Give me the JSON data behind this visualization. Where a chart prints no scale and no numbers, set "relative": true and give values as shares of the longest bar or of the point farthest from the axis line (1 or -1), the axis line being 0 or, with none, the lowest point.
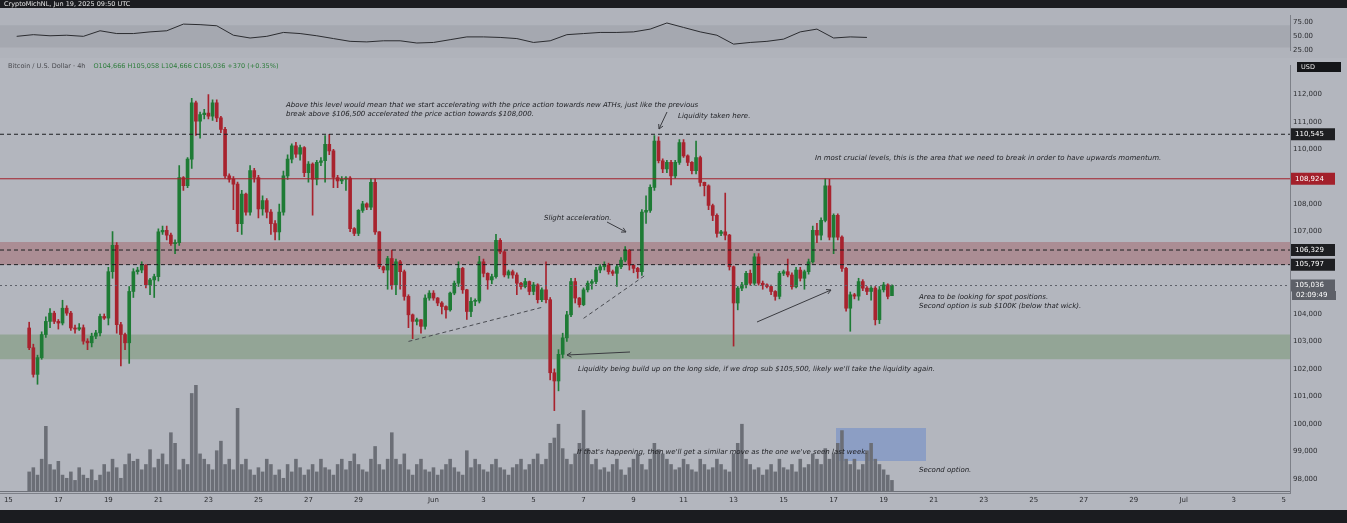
{
  "chart_data": [
    {
      "type": "line",
      "title": "CryptoMichNL, Jun 19, 2025 09:50 UTC",
      "x": [
        "2025-05-15T08:00",
        "2025-05-16T00:00",
        "2025-05-16T16:00",
        "2025-05-17T08:00",
        "2025-05-18T00:00",
        "2025-05-18T16:00",
        "2025-05-19T08:00",
        "2025-05-20T00:00",
        "2025-05-20T16:00",
        "2025-05-21T08:00",
        "2025-05-22T00:00",
        "2025-05-22T16:00",
        "2025-05-23T08:00",
        "2025-05-24T00:00",
        "2025-05-24T16:00",
        "2025-05-25T08:00",
        "2025-05-26T00:00",
        "2025-05-26T16:00",
        "2025-05-27T08:00",
        "2025-05-28T00:00",
        "2025-05-28T16:00",
        "2025-05-29T08:00",
        "2025-05-30T00:00",
        "2025-05-30T16:00",
        "2025-05-31T08:00",
        "2025-06-01T00:00",
        "2025-06-01T16:00",
        "2025-06-02T08:00",
        "2025-06-03T00:00",
        "2025-06-03T16:00",
        "2025-06-04T08:00",
        "2025-06-05T00:00",
        "2025-06-05T16:00",
        "2025-06-06T08:00",
        "2025-06-07T00:00",
        "2025-06-07T16:00",
        "2025-06-08T08:00",
        "2025-06-09T00:00",
        "2025-06-09T16:00",
        "2025-06-10T08:00",
        "2025-06-11T00:00",
        "2025-06-11T16:00",
        "2025-06-12T08:00",
        "2025-06-13T00:00",
        "2025-06-13T16:00",
        "2025-06-14T08:00",
        "2025-06-15T00:00",
        "2025-06-15T16:00",
        "2025-06-16T08:00",
        "2025-06-17T00:00",
        "2025-06-17T16:00",
        "2025-06-18T08:00"
      ],
      "xlim": [
        "2025-05-14T16:00",
        "2025-07-05T06:00"
      ],
      "series": [
        {
          "color": "#2b2c30",
          "values": [
            50,
            53,
            51,
            52,
            50,
            60,
            55,
            55,
            58,
            60,
            72,
            71,
            69,
            52,
            47,
            50,
            57,
            55,
            51,
            46,
            41,
            40,
            42,
            42,
            38,
            39,
            44,
            49,
            49,
            48,
            46,
            39,
            42,
            53,
            55,
            57,
            57,
            58,
            63,
            74,
            66,
            58,
            52,
            36,
            39,
            41,
            45,
            58,
            63,
            47,
            49,
            48
          ]
        }
      ],
      "ylim": [
        24,
        88
      ],
      "yticks": [
        {
          "value": 25,
          "label": "25.00"
        },
        {
          "value": 50,
          "label": "50.00"
        },
        {
          "value": 75,
          "label": "75.00"
        }
      ],
      "bands": [
        {
          "axis": "y",
          "from": 30,
          "to": 70,
          "color": "#a5a8b0"
        }
      ],
      "marker": "none",
      "tick_labels": "y"
    },
    {
      "type": "candlestick",
      "title": "Bitcoin / U.S. Dollar · 4h",
      "subtitle": "O104,666 H105,058 L104,666 C105,036 +370 (+0.35%)",
      "ylabel": "USD",
      "x": [
        "2025-05-15T20:00",
        "2025-05-16T00:00",
        "2025-05-16T04:00",
        "2025-05-16T08:00",
        "2025-05-16T12:00",
        "2025-05-16T16:00",
        "2025-05-16T20:00",
        "2025-05-17T00:00",
        "2025-05-17T04:00",
        "2025-05-17T08:00",
        "2025-05-17T12:00",
        "2025-05-17T16:00",
        "2025-05-17T20:00",
        "2025-05-18T00:00",
        "2025-05-18T04:00",
        "2025-05-18T08:00",
        "2025-05-18T12:00",
        "2025-05-18T16:00",
        "2025-05-18T20:00",
        "2025-05-19T00:00",
        "2025-05-19T04:00",
        "2025-05-19T08:00",
        "2025-05-19T12:00",
        "2025-05-19T16:00",
        "2025-05-19T20:00",
        "2025-05-20T00:00",
        "2025-05-20T04:00",
        "2025-05-20T08:00",
        "2025-05-20T12:00",
        "2025-05-20T16:00",
        "2025-05-20T20:00",
        "2025-05-21T00:00",
        "2025-05-21T04:00",
        "2025-05-21T08:00",
        "2025-05-21T12:00",
        "2025-05-21T16:00",
        "2025-05-21T20:00",
        "2025-05-22T00:00",
        "2025-05-22T04:00",
        "2025-05-22T08:00",
        "2025-05-22T12:00",
        "2025-05-22T16:00",
        "2025-05-22T20:00",
        "2025-05-23T00:00",
        "2025-05-23T04:00",
        "2025-05-23T08:00",
        "2025-05-23T12:00",
        "2025-05-23T16:00",
        "2025-05-23T20:00",
        "2025-05-24T00:00",
        "2025-05-24T04:00",
        "2025-05-24T08:00",
        "2025-05-24T12:00",
        "2025-05-24T16:00",
        "2025-05-24T20:00",
        "2025-05-25T00:00",
        "2025-05-25T04:00",
        "2025-05-25T08:00",
        "2025-05-25T12:00",
        "2025-05-25T16:00",
        "2025-05-25T20:00",
        "2025-05-26T00:00",
        "2025-05-26T04:00",
        "2025-05-26T08:00",
        "2025-05-26T12:00",
        "2025-05-26T16:00",
        "2025-05-26T20:00",
        "2025-05-27T00:00",
        "2025-05-27T04:00",
        "2025-05-27T08:00",
        "2025-05-27T12:00",
        "2025-05-27T16:00",
        "2025-05-27T20:00",
        "2025-05-28T00:00",
        "2025-05-28T04:00",
        "2025-05-28T08:00",
        "2025-05-28T12:00",
        "2025-05-28T16:00",
        "2025-05-28T20:00",
        "2025-05-29T00:00",
        "2025-05-29T04:00",
        "2025-05-29T08:00",
        "2025-05-29T12:00",
        "2025-05-29T16:00",
        "2025-05-29T20:00",
        "2025-05-30T00:00",
        "2025-05-30T04:00",
        "2025-05-30T08:00",
        "2025-05-30T12:00",
        "2025-05-30T16:00",
        "2025-05-30T20:00",
        "2025-05-31T00:00",
        "2025-05-31T04:00",
        "2025-05-31T08:00",
        "2025-05-31T12:00",
        "2025-05-31T16:00",
        "2025-05-31T20:00",
        "2025-06-01T00:00",
        "2025-06-01T04:00",
        "2025-06-01T08:00",
        "2025-06-01T12:00",
        "2025-06-01T16:00",
        "2025-06-01T20:00",
        "2025-06-02T00:00",
        "2025-06-02T04:00",
        "2025-06-02T08:00",
        "2025-06-02T12:00",
        "2025-06-02T16:00",
        "2025-06-02T20:00",
        "2025-06-03T00:00",
        "2025-06-03T04:00",
        "2025-06-03T08:00",
        "2025-06-03T12:00",
        "2025-06-03T16:00",
        "2025-06-03T20:00",
        "2025-06-04T00:00",
        "2025-06-04T04:00",
        "2025-06-04T08:00",
        "2025-06-04T12:00",
        "2025-06-04T16:00",
        "2025-06-04T20:00",
        "2025-06-05T00:00",
        "2025-06-05T04:00",
        "2025-06-05T08:00",
        "2025-06-05T12:00",
        "2025-06-05T16:00",
        "2025-06-05T20:00",
        "2025-06-06T00:00",
        "2025-06-06T04:00",
        "2025-06-06T08:00",
        "2025-06-06T12:00",
        "2025-06-06T16:00",
        "2025-06-06T20:00",
        "2025-06-07T00:00",
        "2025-06-07T04:00",
        "2025-06-07T08:00",
        "2025-06-07T12:00",
        "2025-06-07T16:00",
        "2025-06-07T20:00",
        "2025-06-08T00:00",
        "2025-06-08T04:00",
        "2025-06-08T08:00",
        "2025-06-08T12:00",
        "2025-06-08T16:00",
        "2025-06-08T20:00",
        "2025-06-09T00:00",
        "2025-06-09T04:00",
        "2025-06-09T08:00",
        "2025-06-09T12:00",
        "2025-06-09T16:00",
        "2025-06-09T20:00",
        "2025-06-10T00:00",
        "2025-06-10T04:00",
        "2025-06-10T08:00",
        "2025-06-10T12:00",
        "2025-06-10T16:00",
        "2025-06-10T20:00",
        "2025-06-11T00:00",
        "2025-06-11T04:00",
        "2025-06-11T08:00",
        "2025-06-11T12:00",
        "2025-06-11T16:00",
        "2025-06-11T20:00",
        "2025-06-12T00:00",
        "2025-06-12T04:00",
        "2025-06-12T08:00",
        "2025-06-12T12:00",
        "2025-06-12T16:00",
        "2025-06-12T20:00",
        "2025-06-13T00:00",
        "2025-06-13T04:00",
        "2025-06-13T08:00",
        "2025-06-13T12:00",
        "2025-06-13T16:00",
        "2025-06-13T20:00",
        "2025-06-14T00:00",
        "2025-06-14T04:00",
        "2025-06-14T08:00",
        "2025-06-14T12:00",
        "2025-06-14T16:00",
        "2025-06-14T20:00",
        "2025-06-15T00:00",
        "2025-06-15T04:00",
        "2025-06-15T08:00",
        "2025-06-15T12:00",
        "2025-06-15T16:00",
        "2025-06-15T20:00",
        "2025-06-16T00:00",
        "2025-06-16T04:00",
        "2025-06-16T08:00",
        "2025-06-16T12:00",
        "2025-06-16T16:00",
        "2025-06-16T20:00",
        "2025-06-17T00:00",
        "2025-06-17T04:00",
        "2025-06-17T08:00",
        "2025-06-17T12:00",
        "2025-06-17T16:00",
        "2025-06-17T20:00",
        "2025-06-18T00:00",
        "2025-06-18T04:00",
        "2025-06-18T08:00",
        "2025-06-18T12:00",
        "2025-06-18T16:00",
        "2025-06-18T20:00",
        "2025-06-19T00:00",
        "2025-06-19T04:00",
        "2025-06-19T08:00"
      ],
      "ohlc": [
        [
          103490,
          103700,
          102700,
          102770
        ],
        [
          102770,
          102900,
          101700,
          101800
        ],
        [
          101800,
          102500,
          101440,
          102410
        ],
        [
          102410,
          103350,
          102350,
          103250
        ],
        [
          103250,
          103900,
          103150,
          103730
        ],
        [
          103730,
          104200,
          103500,
          104030
        ],
        [
          104030,
          104100,
          103650,
          103730
        ],
        [
          103730,
          103800,
          103450,
          103670
        ],
        [
          103670,
          104500,
          103600,
          104210
        ],
        [
          104210,
          104300,
          103950,
          104030
        ],
        [
          104030,
          104100,
          103400,
          103490
        ],
        [
          103490,
          103600,
          103300,
          103450
        ],
        [
          103450,
          103650,
          103400,
          103500
        ],
        [
          103500,
          103600,
          102900,
          103010
        ],
        [
          103010,
          103100,
          102700,
          102950
        ],
        [
          102950,
          103300,
          102800,
          103190
        ],
        [
          103190,
          103400,
          103100,
          103310
        ],
        [
          103310,
          104000,
          103200,
          103910
        ],
        [
          103910,
          104000,
          103800,
          103850
        ],
        [
          103850,
          105700,
          103600,
          105540
        ],
        [
          105540,
          107000,
          105300,
          106500
        ],
        [
          106500,
          106600,
          103300,
          103610
        ],
        [
          103610,
          103700,
          102110,
          103250
        ],
        [
          103250,
          103300,
          102700,
          102950
        ],
        [
          102950,
          105000,
          102200,
          104820
        ],
        [
          104820,
          105650,
          104600,
          105540
        ],
        [
          105540,
          105700,
          105450,
          105600
        ],
        [
          105600,
          105900,
          105500,
          105780
        ],
        [
          105780,
          105800,
          104950,
          105060
        ],
        [
          105060,
          105300,
          104700,
          105240
        ],
        [
          105240,
          105450,
          104600,
          105360
        ],
        [
          105360,
          107100,
          105200,
          106990
        ],
        [
          106990,
          107200,
          106900,
          107050
        ],
        [
          107050,
          107200,
          106700,
          106870
        ],
        [
          106870,
          106950,
          106500,
          106560
        ],
        [
          106560,
          106700,
          106200,
          106600
        ],
        [
          106600,
          109400,
          106500,
          108970
        ],
        [
          108970,
          109000,
          108500,
          108670
        ],
        [
          108670,
          109700,
          108600,
          109640
        ],
        [
          109640,
          111850,
          109300,
          111690
        ],
        [
          111690,
          111750,
          110500,
          111020
        ],
        [
          111020,
          111350,
          110400,
          111260
        ],
        [
          111260,
          111450,
          111100,
          111320
        ],
        [
          111320,
          111990,
          111100,
          111200
        ],
        [
          111200,
          111800,
          111050,
          111690
        ],
        [
          111690,
          111800,
          111000,
          111140
        ],
        [
          111140,
          111200,
          110600,
          110720
        ],
        [
          110720,
          110800,
          108950,
          109030
        ],
        [
          109030,
          109100,
          108800,
          108910
        ],
        [
          108910,
          109000,
          107800,
          108730
        ],
        [
          108730,
          108800,
          107000,
          107290
        ],
        [
          107290,
          108500,
          106900,
          108370
        ],
        [
          108370,
          108400,
          107600,
          107710
        ],
        [
          107710,
          109400,
          107600,
          109220
        ],
        [
          109220,
          109300,
          108800,
          108970
        ],
        [
          108970,
          109050,
          107500,
          107830
        ],
        [
          107830,
          108300,
          107600,
          108130
        ],
        [
          108130,
          108200,
          107500,
          107710
        ],
        [
          107710,
          107800,
          106900,
          107290
        ],
        [
          107290,
          107400,
          106700,
          106990
        ],
        [
          106990,
          108000,
          106700,
          107710
        ],
        [
          107710,
          109200,
          107600,
          109030
        ],
        [
          109030,
          109800,
          108900,
          109640
        ],
        [
          109640,
          110200,
          109500,
          110120
        ],
        [
          110120,
          110250,
          109700,
          109820
        ],
        [
          109820,
          110150,
          109600,
          110060
        ],
        [
          110060,
          110100,
          109000,
          109150
        ],
        [
          109150,
          109550,
          108800,
          109460
        ],
        [
          109460,
          109500,
          107600,
          108910
        ],
        [
          108910,
          109600,
          108700,
          109520
        ],
        [
          109520,
          109700,
          109400,
          109580
        ],
        [
          109580,
          110500,
          108800,
          110180
        ],
        [
          110180,
          110545,
          109800,
          109940
        ],
        [
          109940,
          110000,
          108600,
          108970
        ],
        [
          108970,
          109050,
          108600,
          108850
        ],
        [
          108850,
          109000,
          108750,
          108910
        ],
        [
          108910,
          109000,
          108500,
          108950
        ],
        [
          108950,
          109000,
          107000,
          107110
        ],
        [
          107110,
          107150,
          106850,
          106930
        ],
        [
          106930,
          107800,
          106850,
          107770
        ],
        [
          107770,
          108100,
          107700,
          108010
        ],
        [
          108010,
          108050,
          107800,
          107890
        ],
        [
          107890,
          108930,
          107800,
          108790
        ],
        [
          108790,
          108924,
          106900,
          106990
        ],
        [
          106990,
          107000,
          105650,
          105720
        ],
        [
          105720,
          105750,
          105500,
          105600
        ],
        [
          105600,
          106100,
          104900,
          106020
        ],
        [
          106020,
          106329,
          104900,
          105060
        ],
        [
          105060,
          106000,
          104700,
          105900
        ],
        [
          105900,
          105950,
          104900,
          105540
        ],
        [
          105540,
          105600,
          104500,
          104640
        ],
        [
          104640,
          104700,
          103500,
          103970
        ],
        [
          103970,
          104000,
          103100,
          103730
        ],
        [
          103730,
          103850,
          103600,
          103790
        ],
        [
          103790,
          103800,
          103300,
          103550
        ],
        [
          103550,
          104700,
          103450,
          104580
        ],
        [
          104580,
          104850,
          104500,
          104760
        ],
        [
          104760,
          104850,
          104500,
          104580
        ],
        [
          104580,
          104600,
          104300,
          104400
        ],
        [
          104400,
          104450,
          104000,
          104270
        ],
        [
          104270,
          104300,
          103850,
          104150
        ],
        [
          104150,
          104800,
          104100,
          104760
        ],
        [
          104760,
          105200,
          104700,
          105120
        ],
        [
          105120,
          105900,
          105000,
          105660
        ],
        [
          105660,
          105700,
          104750,
          104880
        ],
        [
          104880,
          104900,
          103800,
          104090
        ],
        [
          104090,
          104600,
          103900,
          104460
        ],
        [
          104460,
          104550,
          104300,
          104470
        ],
        [
          104470,
          106100,
          104400,
          105900
        ],
        [
          105900,
          106000,
          105350,
          105480
        ],
        [
          105480,
          105500,
          104900,
          105240
        ],
        [
          105240,
          105450,
          105100,
          105360
        ],
        [
          105360,
          106900,
          105300,
          106680
        ],
        [
          106680,
          106750,
          106200,
          106260
        ],
        [
          106260,
          106300,
          105350,
          105420
        ],
        [
          105420,
          105600,
          105300,
          105540
        ],
        [
          105540,
          105600,
          105300,
          105420
        ],
        [
          105420,
          105500,
          104700,
          105120
        ],
        [
          105120,
          105150,
          104900,
          105000
        ],
        [
          105000,
          105300,
          104950,
          105180
        ],
        [
          105180,
          105200,
          104700,
          104820
        ],
        [
          104820,
          105150,
          104700,
          105060
        ],
        [
          105060,
          105100,
          104400,
          104520
        ],
        [
          104520,
          104950,
          104450,
          104880
        ],
        [
          104880,
          105900,
          104400,
          104520
        ],
        [
          104520,
          104600,
          101600,
          101860
        ],
        [
          101860,
          102000,
          100480,
          101560
        ],
        [
          101560,
          102700,
          101200,
          102530
        ],
        [
          102530,
          103300,
          102400,
          103130
        ],
        [
          103130,
          104100,
          103000,
          103970
        ],
        [
          103970,
          105300,
          103900,
          105180
        ],
        [
          105180,
          105300,
          104400,
          104580
        ],
        [
          104580,
          104600,
          104250,
          104340
        ],
        [
          104340,
          104950,
          104300,
          104880
        ],
        [
          104880,
          105200,
          104800,
          105120
        ],
        [
          105120,
          105250,
          104900,
          105180
        ],
        [
          105180,
          105700,
          105100,
          105600
        ],
        [
          105600,
          105800,
          105500,
          105720
        ],
        [
          105720,
          105900,
          105600,
          105780
        ],
        [
          105780,
          105850,
          105450,
          105540
        ],
        [
          105540,
          105600,
          105400,
          105480
        ],
        [
          105480,
          105800,
          105000,
          105720
        ],
        [
          105720,
          106050,
          105650,
          105960
        ],
        [
          105960,
          106450,
          105900,
          106320
        ],
        [
          106320,
          106350,
          105600,
          105780
        ],
        [
          105780,
          105800,
          105500,
          105660
        ],
        [
          105660,
          105700,
          105300,
          105540
        ],
        [
          105540,
          107800,
          105400,
          107710
        ],
        [
          107710,
          108300,
          107300,
          107770
        ],
        [
          107770,
          108700,
          107700,
          108610
        ],
        [
          108610,
          110500,
          108500,
          110300
        ],
        [
          110300,
          110450,
          109500,
          109580
        ],
        [
          109580,
          109650,
          109150,
          109280
        ],
        [
          109280,
          109600,
          109150,
          109520
        ],
        [
          109520,
          109600,
          108700,
          109030
        ],
        [
          109030,
          109600,
          108950,
          109520
        ],
        [
          109520,
          110350,
          109450,
          110240
        ],
        [
          110240,
          110350,
          109700,
          109760
        ],
        [
          109760,
          109800,
          109400,
          109520
        ],
        [
          109520,
          109550,
          109100,
          109220
        ],
        [
          109220,
          110300,
          109100,
          109700
        ],
        [
          109700,
          109750,
          108650,
          108790
        ],
        [
          108790,
          108800,
          108300,
          108670
        ],
        [
          108670,
          108700,
          107800,
          107950
        ],
        [
          107950,
          108000,
          107400,
          107590
        ],
        [
          107590,
          107650,
          106800,
          106930
        ],
        [
          106930,
          107050,
          106850,
          106990
        ],
        [
          106990,
          108400,
          106700,
          106870
        ],
        [
          106870,
          106900,
          105600,
          105720
        ],
        [
          105720,
          105750,
          102830,
          104400
        ],
        [
          104400,
          105000,
          104150,
          104940
        ],
        [
          104940,
          105150,
          104850,
          105060
        ],
        [
          105060,
          105550,
          104950,
          105480
        ],
        [
          105480,
          105600,
          105050,
          105120
        ],
        [
          105120,
          106200,
          105050,
          106080
        ],
        [
          106080,
          106200,
          105050,
          105120
        ],
        [
          105120,
          105200,
          104900,
          105060
        ],
        [
          105060,
          105100,
          104950,
          105000
        ],
        [
          105000,
          105050,
          104700,
          104820
        ],
        [
          104820,
          104850,
          104500,
          104640
        ],
        [
          104640,
          105550,
          104550,
          105480
        ],
        [
          105480,
          105600,
          105400,
          105540
        ],
        [
          105540,
          106000,
          105350,
          105420
        ],
        [
          105420,
          105500,
          104900,
          104990
        ],
        [
          104990,
          105700,
          104950,
          105600
        ],
        [
          105600,
          105700,
          105200,
          105300
        ],
        [
          105300,
          105600,
          104900,
          105540
        ],
        [
          105540,
          106000,
          105450,
          105900
        ],
        [
          105900,
          107200,
          105850,
          107050
        ],
        [
          107050,
          107300,
          106600,
          106870
        ],
        [
          106870,
          107500,
          106700,
          107410
        ],
        [
          107410,
          108920,
          107350,
          108670
        ],
        [
          108670,
          108900,
          106700,
          106800
        ],
        [
          106800,
          107650,
          106200,
          107590
        ],
        [
          107590,
          107650,
          106700,
          106800
        ],
        [
          106800,
          106850,
          105550,
          105660
        ],
        [
          105660,
          105700,
          104100,
          104210
        ],
        [
          104210,
          104800,
          103370,
          104700
        ],
        [
          104700,
          104750,
          104550,
          104650
        ],
        [
          104650,
          105300,
          104500,
          105180
        ],
        [
          105180,
          105250,
          104850,
          104940
        ],
        [
          104940,
          105000,
          104700,
          104820
        ],
        [
          104820,
          105000,
          104500,
          104940
        ],
        [
          104940,
          105000,
          103600,
          103790
        ],
        [
          103790,
          105000,
          103650,
          104880
        ],
        [
          104880,
          105150,
          104800,
          105060
        ],
        [
          105060,
          105100,
          104550,
          104640
        ],
        [
          104666,
          105058,
          104666,
          105036
        ]
      ],
      "series": [
        {
          "type": "line",
          "x": [
            "2025-05-31T00:00",
            "2025-06-05T08:00"
          ],
          "values": [
            103000,
            104240
          ],
          "color": "#4a4c52",
          "line_style": "dashed"
        },
        {
          "type": "line",
          "x": [
            "2025-06-07T00:00",
            "2025-06-09T12:00"
          ],
          "values": [
            103840,
            105430
          ],
          "color": "#4a4c52",
          "line_style": "dashed"
        }
      ],
      "xlim": [
        "2025-05-14T16:00",
        "2025-07-05T06:00"
      ],
      "xticks": [
        {
          "value": "2025-05-15",
          "label": "15"
        },
        {
          "value": "2025-05-17",
          "label": "17"
        },
        {
          "value": "2025-05-19",
          "label": "19"
        },
        {
          "value": "2025-05-21",
          "label": "21"
        },
        {
          "value": "2025-05-23",
          "label": "23"
        },
        {
          "value": "2025-05-25",
          "label": "25"
        },
        {
          "value": "2025-05-27",
          "label": "27"
        },
        {
          "value": "2025-05-29",
          "label": "29"
        },
        {
          "value": "2025-06-01",
          "label": "Jun"
        },
        {
          "value": "2025-06-03",
          "label": "3"
        },
        {
          "value": "2025-06-05",
          "label": "5"
        },
        {
          "value": "2025-06-07",
          "label": "7"
        },
        {
          "value": "2025-06-09",
          "label": "9"
        },
        {
          "value": "2025-06-11",
          "label": "11"
        },
        {
          "value": "2025-06-13",
          "label": "13"
        },
        {
          "value": "2025-06-15",
          "label": "15"
        },
        {
          "value": "2025-06-17",
          "label": "17"
        },
        {
          "value": "2025-06-19",
          "label": "19"
        },
        {
          "value": "2025-06-21",
          "label": "21"
        },
        {
          "value": "2025-06-23",
          "label": "23"
        },
        {
          "value": "2025-06-25",
          "label": "25"
        },
        {
          "value": "2025-06-27",
          "label": "27"
        },
        {
          "value": "2025-06-29",
          "label": "29"
        },
        {
          "value": "2025-07-01",
          "label": "Jul"
        },
        {
          "value": "2025-07-03",
          "label": "3"
        },
        {
          "value": "2025-07-05",
          "label": "5"
        }
      ],
      "ylim": [
        97480,
        113060
      ],
      "yticks": [
        {
          "value": 98000,
          "label": "98,000"
        },
        {
          "value": 99000,
          "label": "99,000"
        },
        {
          "value": 100000,
          "label": "100,000"
        },
        {
          "value": 101000,
          "label": "101,000"
        },
        {
          "value": 102000,
          "label": "102,000"
        },
        {
          "value": 103000,
          "label": "103,000"
        },
        {
          "value": 104000,
          "label": "104,000"
        },
        {
          "value": 107000,
          "label": "107,000"
        },
        {
          "value": 108000,
          "label": "108,000"
        },
        {
          "value": 110000,
          "label": "110,000"
        },
        {
          "value": 111000,
          "label": "111,000"
        },
        {
          "value": 112000,
          "label": "112,000"
        }
      ],
      "ref_lines": [
        {
          "axis": "y",
          "value": 110545,
          "label": "110,545",
          "color": "#1e1f22",
          "line_style": "dashed"
        },
        {
          "axis": "y",
          "value": 108924,
          "label": "108,924",
          "color": "#a3202b",
          "line_style": "solid"
        },
        {
          "axis": "y",
          "value": 106329,
          "label": "106,329",
          "color": "#1e1f22",
          "line_style": "dashed"
        },
        {
          "axis": "y",
          "value": 105797,
          "label": "105,797",
          "color": "#1e1f22",
          "line_style": "dashed"
        },
        {
          "axis": "y",
          "value": 105036,
          "label": "105,036",
          "color": "#5d6068",
          "line_style": "dotted"
        }
      ],
      "bands": [
        {
          "axis": "y",
          "from": 105797,
          "to": 106620,
          "color": "#ab8d94"
        },
        {
          "axis": "y",
          "from": 102350,
          "to": 103250,
          "color": "#93a596"
        }
      ],
      "annotations": [
        "Above this level would mean that we start accelerating with the price action towards new ATHs, just like the previous\nbreak above $106,500 accelerated the price action towards $108,000.",
        "Liquidity taken here.",
        "In most crucial levels, this is the area that we need to break in order to have upwards momentum.",
        "Slight acceleration.",
        "Area to be looking for spot positions.\nSecond option is sub $100K (below that wick).",
        "Liquidity being build up on the long side, if we drop sub $105,500, likely we'll take the liquidity again.",
        "If that's happening, then we'll get a similar move as the one we've seen last week.",
        "Second option.",
        "02:09:49"
      ]
    },
    {
      "type": "bar",
      "relative": true,
      "tick_labels": false,
      "color": "#6b6e76",
      "categories": [
        null,
        null,
        null,
        null,
        null,
        null,
        null,
        null,
        null,
        null,
        null,
        null,
        null,
        null,
        null,
        null,
        null,
        null,
        null,
        null,
        null,
        null,
        null,
        null,
        null,
        null,
        null,
        null,
        null,
        null,
        null,
        null,
        null,
        null,
        null,
        null,
        null,
        null,
        null,
        null,
        null,
        null,
        null,
        null,
        null,
        null,
        null,
        null,
        null,
        null,
        null,
        null,
        null,
        null,
        null,
        null,
        null,
        null,
        null,
        null,
        null,
        null,
        null,
        null,
        null,
        null,
        null,
        null,
        null,
        null,
        null,
        null,
        null,
        null,
        null,
        null,
        null,
        null,
        null,
        null,
        null,
        null,
        null,
        null,
        null,
        null,
        null,
        null,
        null,
        null,
        null,
        null,
        null,
        null,
        null,
        null,
        null,
        null,
        null,
        null,
        null,
        null,
        null,
        null,
        null,
        null,
        null,
        null,
        null,
        null,
        null,
        null,
        null,
        null,
        null,
        null,
        null,
        null,
        null,
        null,
        null,
        null,
        null,
        null,
        null,
        null,
        null,
        null,
        null,
        null,
        null,
        null,
        null,
        null,
        null,
        null,
        null,
        null,
        null,
        null,
        null,
        null,
        null,
        null,
        null,
        null,
        null,
        null,
        null,
        null,
        null,
        null,
        null,
        null,
        null,
        null,
        null,
        null,
        null,
        null,
        null,
        null,
        null,
        null,
        null,
        null,
        null,
        null,
        null,
        null,
        null,
        null,
        null,
        null,
        null,
        null,
        null,
        null,
        null,
        null,
        null,
        null,
        null,
        null,
        null,
        null,
        null,
        null,
        null,
        null,
        null,
        null,
        null,
        null,
        null,
        null,
        null,
        null,
        null,
        null,
        null,
        null,
        null,
        null,
        null,
        null,
        null,
        null
      ],
      "values": [
        0.18,
        0.22,
        0.15,
        0.3,
        0.61,
        0.25,
        0.2,
        0.28,
        0.15,
        0.12,
        0.18,
        0.1,
        0.22,
        0.15,
        0.12,
        0.2,
        0.1,
        0.15,
        0.25,
        0.18,
        0.3,
        0.22,
        0.12,
        0.25,
        0.35,
        0.28,
        0.3,
        0.2,
        0.25,
        0.39,
        0.22,
        0.3,
        0.35,
        0.25,
        0.55,
        0.45,
        0.2,
        0.3,
        0.25,
        0.92,
        1,
        0.35,
        0.3,
        0.25,
        0.2,
        0.38,
        0.47,
        0.25,
        0.3,
        0.2,
        0.78,
        0.25,
        0.3,
        0.2,
        0.15,
        0.22,
        0.18,
        0.3,
        0.25,
        0.15,
        0.2,
        0.12,
        0.25,
        0.18,
        0.3,
        0.22,
        0.15,
        0.2,
        0.25,
        0.18,
        0.3,
        0.22,
        0.2,
        0.15,
        0.25,
        0.3,
        0.2,
        0.28,
        0.35,
        0.25,
        0.2,
        0.18,
        0.3,
        0.42,
        0.25,
        0.2,
        0.3,
        0.55,
        0.3,
        0.25,
        0.35,
        0.2,
        0.15,
        0.25,
        0.3,
        0.2,
        0.18,
        0.22,
        0.15,
        0.2,
        0.25,
        0.3,
        0.22,
        0.18,
        0.15,
        0.38,
        0.22,
        0.3,
        0.25,
        0.2,
        0.18,
        0.25,
        0.3,
        0.22,
        0.2,
        0.15,
        0.22,
        0.25,
        0.3,
        0.2,
        0.25,
        0.3,
        0.35,
        0.25,
        0.3,
        0.45,
        0.5,
        0.63,
        0.4,
        0.3,
        0.25,
        0.35,
        0.45,
        0.76,
        0.4,
        0.25,
        0.3,
        0.2,
        0.22,
        0.18,
        0.25,
        0.3,
        0.2,
        0.15,
        0.22,
        0.3,
        0.35,
        0.25,
        0.2,
        0.3,
        0.45,
        0.39,
        0.35,
        0.3,
        0.25,
        0.2,
        0.22,
        0.3,
        0.25,
        0.2,
        0.18,
        0.3,
        0.25,
        0.2,
        0.22,
        0.3,
        0.25,
        0.2,
        0.18,
        0.35,
        0.45,
        0.63,
        0.3,
        0.25,
        0.2,
        0.22,
        0.15,
        0.2,
        0.25,
        0.18,
        0.3,
        0.22,
        0.2,
        0.25,
        0.18,
        0.3,
        0.22,
        0.25,
        0.35,
        0.3,
        0.25,
        0.4,
        0.3,
        0.35,
        0.45,
        0.57,
        0.3,
        0.25,
        0.3,
        0.2,
        0.25,
        0.38,
        0.45,
        0.3,
        0.25,
        0.2,
        0.15,
        0.1
      ]
    }
  ]
}
